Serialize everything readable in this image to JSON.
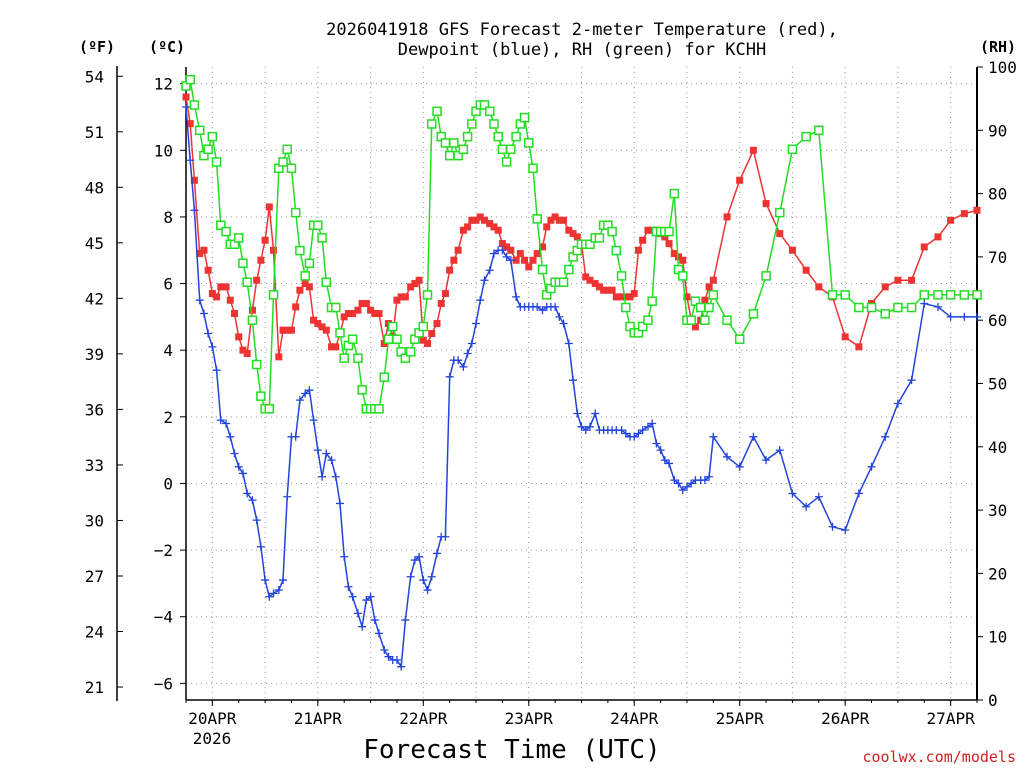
{
  "chart_data": {
    "type": "line",
    "title_line1": "2026041918 GFS Forecast 2-meter Temperature (red),",
    "title_line2": "Dewpoint (blue), RH (green) for KCHH",
    "xlabel": "Forecast Time (UTC)",
    "watermark": "coolwx.com/models",
    "axis_labels": {
      "f": "(ºF)",
      "c": "(ºC)",
      "rh": "(RH)"
    },
    "x_ticks": [
      {
        "label": "20APR",
        "day": 0.25
      },
      {
        "label": "21APR",
        "day": 1.25
      },
      {
        "label": "22APR",
        "day": 2.25
      },
      {
        "label": "23APR",
        "day": 3.25
      },
      {
        "label": "24APR",
        "day": 4.25
      },
      {
        "label": "25APR",
        "day": 5.25
      },
      {
        "label": "26APR",
        "day": 6.25
      },
      {
        "label": "27APR",
        "day": 7.25
      }
    ],
    "year_label": "2026",
    "xlim": [
      0,
      7.5
    ],
    "ylim_c": [
      -6.5,
      12.5
    ],
    "ylim_rh": [
      0,
      100
    ],
    "c_ticks": [
      12,
      10,
      8,
      6,
      4,
      2,
      0,
      -2,
      -4,
      -6
    ],
    "f_ticks": [
      54,
      51,
      48,
      45,
      42,
      39,
      36,
      33,
      30,
      27,
      24,
      21
    ],
    "rh_ticks": [
      100,
      90,
      80,
      70,
      60,
      50,
      40,
      30,
      20,
      10,
      0
    ],
    "series": [
      {
        "name": "Temperature (°C)",
        "color": "#ee3333",
        "marker": "filled-square",
        "x": [
          0,
          0.04,
          0.08,
          0.13,
          0.17,
          0.21,
          0.25,
          0.29,
          0.33,
          0.38,
          0.42,
          0.46,
          0.5,
          0.54,
          0.58,
          0.63,
          0.67,
          0.71,
          0.75,
          0.79,
          0.83,
          0.88,
          0.92,
          0.96,
          1.0,
          1.04,
          1.08,
          1.13,
          1.17,
          1.21,
          1.25,
          1.29,
          1.33,
          1.38,
          1.42,
          1.46,
          1.5,
          1.54,
          1.58,
          1.63,
          1.67,
          1.71,
          1.75,
          1.79,
          1.83,
          1.88,
          1.92,
          1.96,
          2.0,
          2.04,
          2.08,
          2.13,
          2.17,
          2.21,
          2.25,
          2.29,
          2.33,
          2.38,
          2.42,
          2.46,
          2.5,
          2.54,
          2.58,
          2.63,
          2.67,
          2.71,
          2.75,
          2.79,
          2.83,
          2.88,
          2.92,
          2.96,
          3.0,
          3.04,
          3.08,
          3.13,
          3.17,
          3.21,
          3.25,
          3.29,
          3.33,
          3.38,
          3.42,
          3.46,
          3.5,
          3.54,
          3.58,
          3.63,
          3.67,
          3.71,
          3.75,
          3.79,
          3.83,
          3.88,
          3.92,
          3.96,
          4.0,
          4.04,
          4.08,
          4.13,
          4.17,
          4.21,
          4.25,
          4.29,
          4.33,
          4.38,
          4.42,
          4.46,
          4.5,
          4.54,
          4.58,
          4.63,
          4.67,
          4.71,
          4.75,
          4.79,
          4.83,
          4.88,
          4.92,
          4.96,
          5.0,
          5.13,
          5.25,
          5.38,
          5.5,
          5.63,
          5.75,
          5.88,
          6.0,
          6.13,
          6.25,
          6.38,
          6.5,
          6.63,
          6.75,
          6.88,
          7.0,
          7.13,
          7.25,
          7.38,
          7.5
        ],
        "values": [
          11.6,
          10.8,
          9.1,
          6.9,
          7.0,
          6.4,
          5.7,
          5.6,
          5.9,
          5.9,
          5.5,
          5.1,
          4.4,
          4.0,
          3.9,
          5.2,
          6.1,
          6.7,
          7.3,
          8.3,
          7.0,
          3.8,
          4.6,
          4.6,
          4.6,
          5.3,
          5.8,
          6.0,
          5.9,
          4.9,
          4.8,
          4.7,
          4.6,
          4.1,
          4.1,
          4.5,
          5.0,
          5.1,
          5.1,
          5.2,
          5.4,
          5.4,
          5.2,
          5.1,
          5.1,
          4.2,
          4.8,
          4.4,
          5.5,
          5.6,
          5.6,
          5.9,
          6.0,
          6.1,
          4.3,
          4.2,
          4.5,
          4.8,
          5.4,
          5.7,
          6.4,
          6.7,
          7.0,
          7.6,
          7.7,
          7.9,
          7.9,
          8.0,
          7.9,
          7.8,
          7.7,
          7.6,
          7.2,
          7.1,
          7.0,
          6.7,
          6.9,
          6.7,
          6.5,
          6.7,
          6.9,
          7.1,
          7.7,
          7.9,
          8.0,
          7.9,
          7.9,
          7.6,
          7.5,
          7.4,
          7.2,
          6.2,
          6.1,
          6.0,
          5.9,
          5.8,
          5.8,
          5.8,
          5.6,
          5.6,
          5.6,
          5.6,
          5.7,
          7.0,
          7.3,
          7.6,
          7.6,
          7.6,
          7.5,
          7.4,
          7.2,
          6.9,
          6.8,
          6.7,
          5.6,
          4.9,
          4.7,
          4.9,
          5.5,
          5.9,
          6.1,
          8.0,
          9.1,
          10.0,
          8.4,
          7.5,
          7.0,
          6.4,
          5.9,
          5.6,
          4.4,
          4.1,
          5.4,
          5.9,
          6.1,
          6.1,
          7.1,
          7.4,
          7.9,
          8.1,
          8.2
        ]
      },
      {
        "name": "Dewpoint (°C)",
        "color": "#2244dd",
        "marker": "plus",
        "x": [
          0,
          0.04,
          0.08,
          0.13,
          0.17,
          0.21,
          0.25,
          0.29,
          0.33,
          0.38,
          0.42,
          0.46,
          0.5,
          0.54,
          0.58,
          0.63,
          0.67,
          0.71,
          0.75,
          0.79,
          0.83,
          0.88,
          0.92,
          0.96,
          1.0,
          1.04,
          1.08,
          1.13,
          1.17,
          1.21,
          1.25,
          1.29,
          1.33,
          1.38,
          1.42,
          1.46,
          1.5,
          1.54,
          1.58,
          1.63,
          1.67,
          1.71,
          1.75,
          1.79,
          1.83,
          1.88,
          1.92,
          1.96,
          2.0,
          2.04,
          2.08,
          2.13,
          2.17,
          2.21,
          2.25,
          2.29,
          2.33,
          2.38,
          2.42,
          2.46,
          2.5,
          2.54,
          2.58,
          2.63,
          2.67,
          2.71,
          2.75,
          2.79,
          2.83,
          2.88,
          2.92,
          2.96,
          3.0,
          3.04,
          3.08,
          3.13,
          3.17,
          3.21,
          3.25,
          3.29,
          3.33,
          3.38,
          3.42,
          3.46,
          3.5,
          3.54,
          3.58,
          3.63,
          3.67,
          3.71,
          3.75,
          3.79,
          3.83,
          3.88,
          3.92,
          3.96,
          4.0,
          4.04,
          4.08,
          4.13,
          4.17,
          4.21,
          4.25,
          4.29,
          4.33,
          4.38,
          4.42,
          4.46,
          4.5,
          4.54,
          4.58,
          4.63,
          4.67,
          4.71,
          4.75,
          4.79,
          4.83,
          4.88,
          4.92,
          4.96,
          5.0,
          5.13,
          5.25,
          5.38,
          5.5,
          5.63,
          5.75,
          5.88,
          6.0,
          6.13,
          6.25,
          6.38,
          6.5,
          6.63,
          6.75,
          6.88,
          7.0,
          7.13,
          7.25,
          7.38,
          7.5
        ],
        "values": [
          11.3,
          9.7,
          8.2,
          5.5,
          5.1,
          4.5,
          4.1,
          3.4,
          1.9,
          1.8,
          1.4,
          0.9,
          0.5,
          0.3,
          -0.3,
          -0.5,
          -1.1,
          -1.9,
          -2.9,
          -3.4,
          -3.3,
          -3.2,
          -2.9,
          -0.4,
          1.4,
          1.4,
          2.5,
          2.7,
          2.8,
          1.9,
          1.0,
          0.2,
          0.9,
          0.7,
          0.2,
          -0.6,
          -2.2,
          -3.1,
          -3.4,
          -3.9,
          -4.3,
          -3.5,
          -3.4,
          -4.1,
          -4.5,
          -5.0,
          -5.2,
          -5.3,
          -5.3,
          -5.5,
          -4.1,
          -2.8,
          -2.3,
          -2.2,
          -2.9,
          -3.2,
          -2.8,
          -2.1,
          -1.6,
          -1.6,
          3.2,
          3.7,
          3.7,
          3.5,
          3.9,
          4.2,
          4.8,
          5.5,
          6.1,
          6.4,
          6.9,
          7.0,
          7.0,
          6.8,
          6.7,
          5.6,
          5.3,
          5.3,
          5.3,
          5.3,
          5.3,
          5.2,
          5.3,
          5.3,
          5.3,
          5.0,
          4.8,
          4.2,
          3.1,
          2.1,
          1.7,
          1.6,
          1.7,
          2.1,
          1.6,
          1.6,
          1.6,
          1.6,
          1.6,
          1.6,
          1.5,
          1.4,
          1.4,
          1.5,
          1.6,
          1.7,
          1.8,
          1.2,
          1.0,
          0.7,
          0.6,
          0.1,
          0.0,
          -0.2,
          -0.1,
          0.0,
          0.1,
          0.1,
          0.1,
          0.2,
          1.4,
          0.8,
          0.5,
          1.4,
          0.7,
          1.0,
          -0.3,
          -0.7,
          -0.4,
          -1.3,
          -1.4,
          -0.3,
          0.5,
          1.4,
          2.4,
          3.1,
          5.4,
          5.3,
          5.0,
          5.0,
          5.0
        ]
      },
      {
        "name": "RH (%)",
        "color": "#22dd22",
        "marker": "open-square",
        "x": [
          0,
          0.04,
          0.08,
          0.13,
          0.17,
          0.21,
          0.25,
          0.29,
          0.33,
          0.38,
          0.42,
          0.46,
          0.5,
          0.54,
          0.58,
          0.63,
          0.67,
          0.71,
          0.75,
          0.79,
          0.83,
          0.88,
          0.92,
          0.96,
          1.0,
          1.04,
          1.08,
          1.13,
          1.17,
          1.21,
          1.25,
          1.29,
          1.33,
          1.38,
          1.42,
          1.46,
          1.5,
          1.54,
          1.58,
          1.63,
          1.67,
          1.71,
          1.75,
          1.79,
          1.83,
          1.88,
          1.92,
          1.96,
          2.0,
          2.04,
          2.08,
          2.13,
          2.17,
          2.21,
          2.25,
          2.29,
          2.33,
          2.38,
          2.42,
          2.46,
          2.5,
          2.54,
          2.58,
          2.63,
          2.67,
          2.71,
          2.75,
          2.79,
          2.83,
          2.88,
          2.92,
          2.96,
          3.0,
          3.04,
          3.08,
          3.13,
          3.17,
          3.21,
          3.25,
          3.29,
          3.33,
          3.38,
          3.42,
          3.46,
          3.5,
          3.54,
          3.58,
          3.63,
          3.67,
          3.71,
          3.75,
          3.79,
          3.83,
          3.88,
          3.92,
          3.96,
          4.0,
          4.04,
          4.08,
          4.13,
          4.17,
          4.21,
          4.25,
          4.29,
          4.33,
          4.38,
          4.42,
          4.46,
          4.5,
          4.54,
          4.58,
          4.63,
          4.67,
          4.71,
          4.75,
          4.79,
          4.83,
          4.88,
          4.92,
          4.96,
          5.0,
          5.13,
          5.25,
          5.38,
          5.5,
          5.63,
          5.75,
          5.88,
          6.0,
          6.13,
          6.25,
          6.38,
          6.5,
          6.63,
          6.75,
          6.88,
          7.0,
          7.13,
          7.25,
          7.38,
          7.5
        ],
        "values": [
          97,
          98,
          94,
          90,
          86,
          87,
          89,
          85,
          75,
          74,
          72,
          72,
          73,
          69,
          66,
          60,
          53,
          48,
          46,
          46,
          64,
          84,
          85,
          87,
          84,
          77,
          71,
          67,
          69,
          75,
          75,
          73,
          66,
          62,
          62,
          58,
          54,
          56,
          57,
          54,
          49,
          46,
          46,
          46,
          46,
          51,
          57,
          59,
          57,
          55,
          54,
          55,
          57,
          58,
          59,
          64,
          91,
          93,
          89,
          88,
          86,
          88,
          86,
          87,
          89,
          91,
          93,
          94,
          94,
          93,
          91,
          89,
          87,
          85,
          87,
          89,
          91,
          92,
          88,
          84,
          76,
          68,
          64,
          65,
          66,
          66,
          66,
          68,
          70,
          71,
          72,
          72,
          72,
          73,
          73,
          75,
          75,
          74,
          71,
          67,
          62,
          59,
          58,
          58,
          59,
          60,
          63,
          74,
          74,
          74,
          74,
          80,
          68,
          67,
          60,
          60,
          63,
          62,
          60,
          62,
          64,
          60,
          57,
          61,
          67,
          77,
          87,
          89,
          90,
          64,
          64,
          62,
          62,
          61,
          62,
          62,
          64,
          64,
          64,
          64,
          64
        ]
      }
    ]
  }
}
